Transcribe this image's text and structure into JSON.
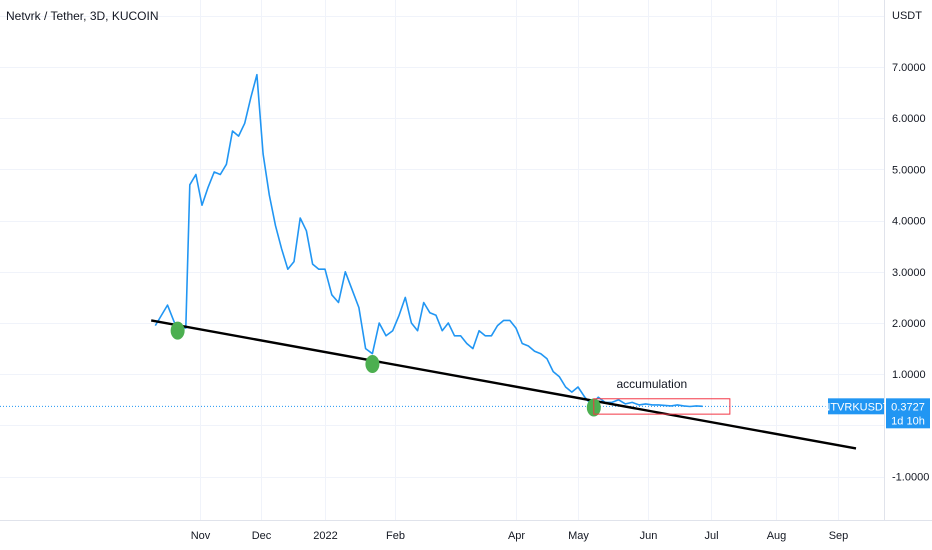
{
  "chart_data": {
    "type": "line",
    "title": "Netvrk / Tether, 3D, KUCOIN",
    "currency_label": "USDT",
    "ylim": [
      -2.0,
      8.6
    ],
    "y_ticks": [
      {
        "value": 7,
        "label": "7.0000"
      },
      {
        "value": 6,
        "label": "6.0000"
      },
      {
        "value": 5,
        "label": "5.0000"
      },
      {
        "value": 4,
        "label": "4.0000"
      },
      {
        "value": 3,
        "label": "3.0000"
      },
      {
        "value": 2,
        "label": "2.0000"
      },
      {
        "value": 1,
        "label": "1.0000"
      },
      {
        "value": -1,
        "label": "-1.0000"
      }
    ],
    "x_ticks": [
      "Nov",
      "Dec",
      "2022",
      "Feb",
      "Apr",
      "May",
      "Jun",
      "Jul",
      "Aug",
      "Sep"
    ],
    "x_tick_dates": [
      "2021-11-01",
      "2021-12-01",
      "2022-01-01",
      "2022-02-01",
      "2022-04-01",
      "2022-05-01",
      "2022-06-01",
      "2022-07-01",
      "2022-08-01",
      "2022-09-01"
    ],
    "series": [
      {
        "color": "#2196f3",
        "points": [
          [
            "2021-10-10",
            1.95
          ],
          [
            "2021-10-16",
            2.35
          ],
          [
            "2021-10-20",
            1.95
          ],
          [
            "2021-10-25",
            1.9
          ],
          [
            "2021-10-27",
            4.7
          ],
          [
            "2021-10-30",
            4.9
          ],
          [
            "2021-11-02",
            4.3
          ],
          [
            "2021-11-05",
            4.65
          ],
          [
            "2021-11-08",
            4.95
          ],
          [
            "2021-11-11",
            4.9
          ],
          [
            "2021-11-14",
            5.1
          ],
          [
            "2021-11-17",
            5.75
          ],
          [
            "2021-11-20",
            5.65
          ],
          [
            "2021-11-23",
            5.9
          ],
          [
            "2021-11-26",
            6.4
          ],
          [
            "2021-11-29",
            6.85
          ],
          [
            "2021-12-02",
            5.3
          ],
          [
            "2021-12-05",
            4.5
          ],
          [
            "2021-12-08",
            3.9
          ],
          [
            "2021-12-11",
            3.45
          ],
          [
            "2021-12-14",
            3.05
          ],
          [
            "2021-12-17",
            3.2
          ],
          [
            "2021-12-20",
            4.05
          ],
          [
            "2021-12-23",
            3.8
          ],
          [
            "2021-12-26",
            3.15
          ],
          [
            "2021-12-29",
            3.05
          ],
          [
            "2022-01-01",
            3.05
          ],
          [
            "2022-01-04",
            2.55
          ],
          [
            "2022-01-07",
            2.4
          ],
          [
            "2022-01-10",
            3.0
          ],
          [
            "2022-01-13",
            2.65
          ],
          [
            "2022-01-16",
            2.3
          ],
          [
            "2022-01-19",
            1.5
          ],
          [
            "2022-01-22",
            1.4
          ],
          [
            "2022-01-25",
            2.0
          ],
          [
            "2022-01-28",
            1.75
          ],
          [
            "2022-01-31",
            1.85
          ],
          [
            "2022-02-03",
            2.15
          ],
          [
            "2022-02-06",
            2.5
          ],
          [
            "2022-02-09",
            2.0
          ],
          [
            "2022-02-12",
            1.85
          ],
          [
            "2022-02-15",
            2.4
          ],
          [
            "2022-02-18",
            2.2
          ],
          [
            "2022-02-21",
            2.15
          ],
          [
            "2022-02-24",
            1.85
          ],
          [
            "2022-02-27",
            2.0
          ],
          [
            "2022-03-02",
            1.75
          ],
          [
            "2022-03-05",
            1.75
          ],
          [
            "2022-03-08",
            1.6
          ],
          [
            "2022-03-11",
            1.5
          ],
          [
            "2022-03-14",
            1.85
          ],
          [
            "2022-03-17",
            1.75
          ],
          [
            "2022-03-20",
            1.75
          ],
          [
            "2022-03-23",
            1.95
          ],
          [
            "2022-03-26",
            2.05
          ],
          [
            "2022-03-29",
            2.05
          ],
          [
            "2022-04-01",
            1.9
          ],
          [
            "2022-04-04",
            1.6
          ],
          [
            "2022-04-07",
            1.55
          ],
          [
            "2022-04-10",
            1.45
          ],
          [
            "2022-04-13",
            1.4
          ],
          [
            "2022-04-16",
            1.3
          ],
          [
            "2022-04-19",
            1.05
          ],
          [
            "2022-04-22",
            0.95
          ],
          [
            "2022-04-25",
            0.75
          ],
          [
            "2022-04-28",
            0.65
          ],
          [
            "2022-05-01",
            0.75
          ],
          [
            "2022-05-04",
            0.55
          ],
          [
            "2022-05-07",
            0.4
          ],
          [
            "2022-05-10",
            0.55
          ],
          [
            "2022-05-13",
            0.45
          ],
          [
            "2022-05-16",
            0.45
          ],
          [
            "2022-05-19",
            0.5
          ],
          [
            "2022-05-22",
            0.42
          ],
          [
            "2022-05-25",
            0.45
          ],
          [
            "2022-05-28",
            0.4
          ],
          [
            "2022-05-31",
            0.42
          ],
          [
            "2022-06-03",
            0.4
          ],
          [
            "2022-06-06",
            0.4
          ],
          [
            "2022-06-09",
            0.39
          ],
          [
            "2022-06-12",
            0.38
          ],
          [
            "2022-06-15",
            0.4
          ],
          [
            "2022-06-18",
            0.38
          ],
          [
            "2022-06-21",
            0.37
          ],
          [
            "2022-06-24",
            0.38
          ],
          [
            "2022-06-27",
            0.3727
          ]
        ]
      }
    ],
    "trendline": {
      "color": "#000000",
      "start": [
        "2021-10-08",
        2.05
      ],
      "end": [
        "2022-09-10",
        -0.45
      ]
    },
    "touch_points": [
      {
        "date": "2021-10-21",
        "value": 1.85,
        "color": "#4caf50"
      },
      {
        "date": "2022-01-22",
        "value": 1.2,
        "color": "#4caf50"
      },
      {
        "date": "2022-05-08",
        "value": 0.35,
        "color": "#4caf50"
      }
    ],
    "annotation": {
      "text": "accumulation",
      "box": {
        "start": "2022-05-08",
        "end": "2022-07-10",
        "top": 0.52,
        "bottom": 0.22
      },
      "box_color": "#f23645"
    },
    "price_badge": {
      "symbol": "NTVRKUSDT",
      "price": "0.3727",
      "countdown": "1d 10h",
      "value": 0.3727,
      "color": "#2196f3"
    }
  }
}
